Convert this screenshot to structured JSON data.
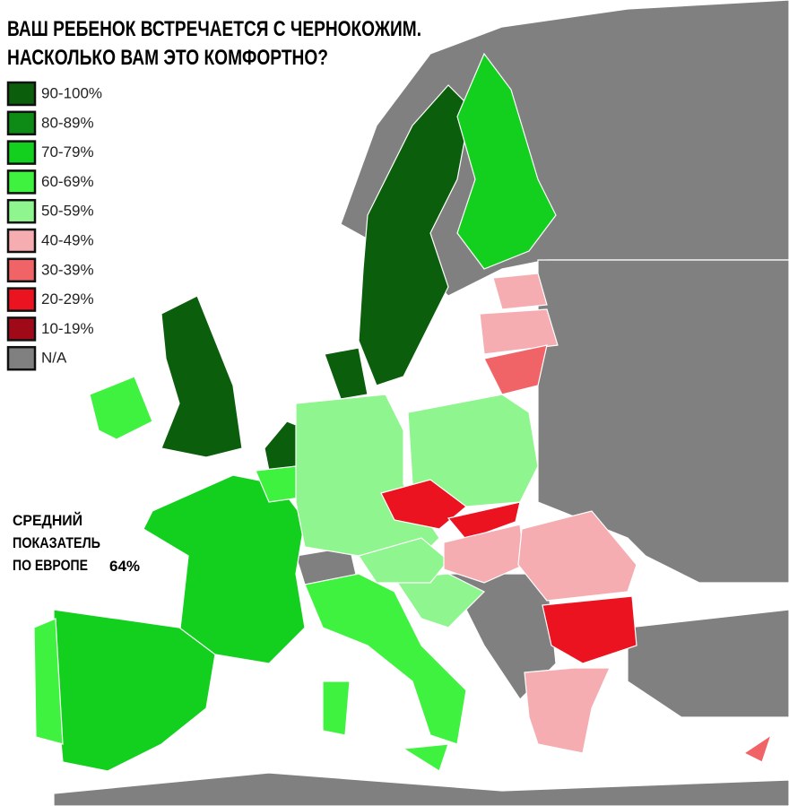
{
  "header": {
    "title_lines": [
      "ВАШ РЕБЕНОК ВСТРЕЧАЕТСЯ С ЧЕРНОКОЖИМ.",
      "НАСКОЛЬКО ВАМ ЭТО КОМФОРТНО?"
    ]
  },
  "legend": [
    {
      "label": "90-100%",
      "color": "#0b5e0b"
    },
    {
      "label": "80-89%",
      "color": "#0e8a17"
    },
    {
      "label": "70-79%",
      "color": "#13d01f"
    },
    {
      "label": "60-69%",
      "color": "#3ff23f"
    },
    {
      "label": "50-59%",
      "color": "#8ff58f"
    },
    {
      "label": "40-49%",
      "color": "#f5adb1"
    },
    {
      "label": "30-39%",
      "color": "#f06468"
    },
    {
      "label": "20-29%",
      "color": "#ec1320"
    },
    {
      "label": "10-19%",
      "color": "#a00a18"
    },
    {
      "label": "N/A",
      "color": "#808080"
    }
  ],
  "note": {
    "lines": [
      "СРЕДНИЙ",
      "ПОКАЗАТЕЛЬ",
      "ПО ЕВРОПЕ"
    ],
    "value": "64%"
  }
}
